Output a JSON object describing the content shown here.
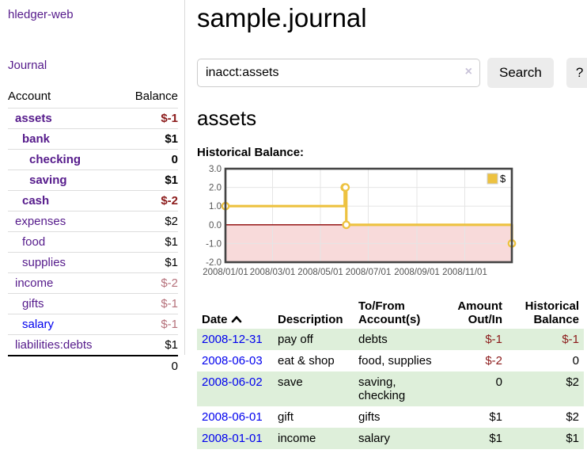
{
  "app": {
    "title": "hledger-web"
  },
  "sidebar": {
    "nav_journal": "Journal",
    "accounts_table": {
      "header_account": "Account",
      "header_balance": "Balance",
      "rows": [
        {
          "account": "assets",
          "balance": "$-1",
          "indent": 1,
          "bold": true,
          "balance_style": "negative",
          "link_style": "purple"
        },
        {
          "account": "bank",
          "balance": "$1",
          "indent": 2,
          "bold": true,
          "balance_style": "normal",
          "link_style": "purple"
        },
        {
          "account": "checking",
          "balance": "0",
          "indent": 3,
          "bold": true,
          "balance_style": "normal",
          "link_style": "purple"
        },
        {
          "account": "saving",
          "balance": "$1",
          "indent": 3,
          "bold": true,
          "balance_style": "normal",
          "link_style": "purple"
        },
        {
          "account": "cash",
          "balance": "$-2",
          "indent": 2,
          "bold": true,
          "balance_style": "negative",
          "link_style": "purple"
        },
        {
          "account": "expenses",
          "balance": "$2",
          "indent": 1,
          "bold": false,
          "balance_style": "normal",
          "link_style": "purple"
        },
        {
          "account": "food",
          "balance": "$1",
          "indent": 2,
          "bold": false,
          "balance_style": "normal",
          "link_style": "purple"
        },
        {
          "account": "supplies",
          "balance": "$1",
          "indent": 2,
          "bold": false,
          "balance_style": "normal",
          "link_style": "purple"
        },
        {
          "account": "income",
          "balance": "$-2",
          "indent": 1,
          "bold": false,
          "balance_style": "negative-muted",
          "link_style": "purple"
        },
        {
          "account": "gifts",
          "balance": "$-1",
          "indent": 2,
          "bold": false,
          "balance_style": "negative-muted",
          "link_style": "purple"
        },
        {
          "account": "salary",
          "balance": "$-1",
          "indent": 2,
          "bold": false,
          "balance_style": "negative-muted",
          "link_style": "blue"
        },
        {
          "account": "liabilities:debts",
          "balance": "$1",
          "indent": 1,
          "bold": false,
          "balance_style": "normal",
          "link_style": "purple"
        }
      ],
      "total": "0"
    }
  },
  "main": {
    "title": "sample.journal",
    "search": {
      "value": "inacct:assets",
      "clear_icon": "×",
      "search_button": "Search",
      "help_button": "?"
    },
    "account_heading": "assets",
    "chart_heading": "Historical Balance:",
    "chart_data": {
      "type": "line",
      "title": "Historical Balance:",
      "step": true,
      "series": [
        {
          "name": "$",
          "color": "#edc240",
          "points": [
            {
              "date": "2008/01/01",
              "value": 1
            },
            {
              "date": "2008/06/01",
              "value": 2
            },
            {
              "date": "2008/06/02",
              "value": 2
            },
            {
              "date": "2008/06/03",
              "value": 0
            },
            {
              "date": "2008/12/31",
              "value": -1
            }
          ]
        }
      ],
      "x_ticks": [
        "2008/01/01",
        "2008/03/01",
        "2008/05/01",
        "2008/07/01",
        "2008/09/01",
        "2008/11/01"
      ],
      "y_ticks": [
        "3.0",
        "2.0",
        "1.0",
        "0.0",
        "-1.0",
        "-2.0"
      ],
      "ylim": [
        -2,
        3
      ],
      "x_range_days": 365,
      "grid": true,
      "legend_position": "top-right",
      "legend_label": "$",
      "negative_region_color": "#f8dada",
      "zero_line_color": "#8b0000",
      "grid_color": "#e5e5e5",
      "border_color": "#434343",
      "tick_color": "#545454"
    },
    "register_table": {
      "headers": [
        {
          "lines": [
            "Date"
          ],
          "sortable": true,
          "align": "left"
        },
        {
          "lines": [
            "Description"
          ],
          "align": "left"
        },
        {
          "lines": [
            "To/From",
            "Account(s)"
          ],
          "align": "left"
        },
        {
          "lines": [
            "Amount",
            "Out/In"
          ],
          "align": "right"
        },
        {
          "lines": [
            "Historical",
            "Balance"
          ],
          "align": "right"
        }
      ],
      "rows": [
        {
          "date": "2008-12-31",
          "description": "pay off",
          "accounts": "debts",
          "amount": "$-1",
          "balance": "$-1",
          "amount_style": "negative",
          "balance_style": "negative",
          "shaded": true
        },
        {
          "date": "2008-06-03",
          "description": "eat & shop",
          "accounts": "food, supplies",
          "amount": "$-2",
          "balance": "0",
          "amount_style": "negative",
          "balance_style": "normal",
          "shaded": false
        },
        {
          "date": "2008-06-02",
          "description": "save",
          "accounts": "saving, checking",
          "amount": "0",
          "balance": "$2",
          "amount_style": "normal",
          "balance_style": "normal",
          "shaded": true
        },
        {
          "date": "2008-06-01",
          "description": "gift",
          "accounts": "gifts",
          "amount": "$1",
          "balance": "$2",
          "amount_style": "normal",
          "balance_style": "normal",
          "shaded": false
        },
        {
          "date": "2008-01-01",
          "description": "income",
          "accounts": "salary",
          "amount": "$1",
          "balance": "$1",
          "amount_style": "normal",
          "balance_style": "normal",
          "shaded": true
        }
      ]
    }
  },
  "colors": {
    "link_purple": "#551a8b",
    "link_blue": "#0000ee",
    "negative": "#8b1a1a",
    "negative_muted": "#b5707a",
    "row_stripe_green": "#deefda",
    "series_yellow": "#edc240",
    "button_gray": "#ececec"
  }
}
